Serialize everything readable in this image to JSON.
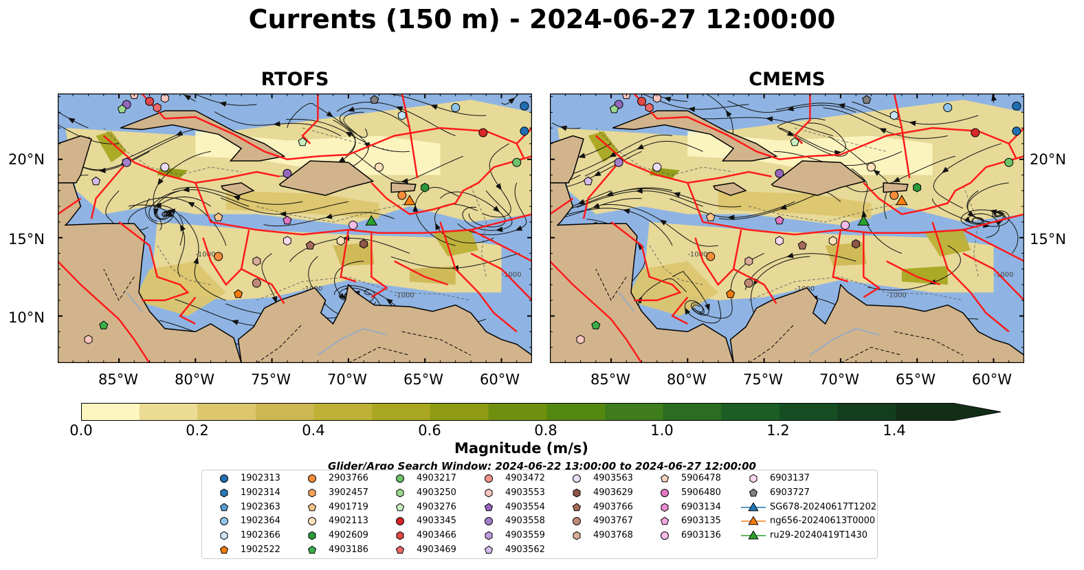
{
  "title": "Currents (150 m) - 2024-06-27 12:00:00",
  "panels": [
    {
      "name": "RTOFS"
    },
    {
      "name": "CMEMS"
    }
  ],
  "map": {
    "lon_range": [
      -89,
      -58
    ],
    "lat_range": [
      7,
      24.2
    ],
    "lat_ticks": [
      "20°N",
      "15°N",
      "10°N"
    ],
    "lon_ticks": [
      "85°W",
      "80°W",
      "75°W",
      "70°W",
      "65°W",
      "60°W"
    ],
    "contour_label": "-1000",
    "colors": {
      "ocean": "#8fb4e3",
      "land": "#d2b48c",
      "coast": "#000000",
      "eez": "#ff1a1a",
      "streamline": "#111111"
    }
  },
  "colorbar": {
    "label": "Magnitude (m/s)",
    "ticks": [
      "0.0",
      "0.2",
      "0.4",
      "0.6",
      "0.8",
      "1.0",
      "1.2",
      "1.4"
    ],
    "min": 0.0,
    "max": 1.5,
    "step": 0.1,
    "extend": "max",
    "colors": [
      "#fdf6c1",
      "#ecdb93",
      "#dcc66e",
      "#cdb853",
      "#bdb137",
      "#a9a621",
      "#8e9b13",
      "#6f900f",
      "#558811",
      "#3f7d1c",
      "#2a6d20",
      "#1b5d25",
      "#164d22",
      "#143d1d",
      "#122e17"
    ]
  },
  "search_window": "Glider/Argo Search Window: 2024-06-22 13:00:00 to 2024-06-27 12:00:00",
  "legend": {
    "columns": [
      [
        {
          "label": "1902313",
          "marker": "circle",
          "color": "#1f6fb2"
        },
        {
          "label": "1902314",
          "marker": "hexagon",
          "color": "#2a7ab8"
        },
        {
          "label": "1902363",
          "marker": "pentagon",
          "color": "#5a9fd4"
        },
        {
          "label": "1902364",
          "marker": "circle",
          "color": "#8fc3ea"
        },
        {
          "label": "1902366",
          "marker": "hexagon",
          "color": "#c6e4f7"
        },
        {
          "label": "1902522",
          "marker": "pentagon",
          "color": "#f47b0e"
        }
      ],
      [
        {
          "label": "2903766",
          "marker": "circle",
          "color": "#f58d3a"
        },
        {
          "label": "3902457",
          "marker": "hexagon",
          "color": "#f7a35c"
        },
        {
          "label": "4901719",
          "marker": "pentagon",
          "color": "#f9c48c"
        },
        {
          "label": "4902113",
          "marker": "circle",
          "color": "#fde0bc"
        },
        {
          "label": "4902609",
          "marker": "hexagon",
          "color": "#2a9a3a"
        },
        {
          "label": "4903186",
          "marker": "pentagon",
          "color": "#3ab04a"
        }
      ],
      [
        {
          "label": "4903217",
          "marker": "circle",
          "color": "#6cc36a"
        },
        {
          "label": "4903250",
          "marker": "hexagon",
          "color": "#9bd98e"
        },
        {
          "label": "4903276",
          "marker": "pentagon",
          "color": "#c9efbf"
        },
        {
          "label": "4903345",
          "marker": "circle",
          "color": "#d62728"
        },
        {
          "label": "4903466",
          "marker": "hexagon",
          "color": "#e04747"
        },
        {
          "label": "4903469",
          "marker": "pentagon",
          "color": "#ee6a6a"
        }
      ],
      [
        {
          "label": "4903472",
          "marker": "circle",
          "color": "#f1938a"
        },
        {
          "label": "4903553",
          "marker": "hexagon",
          "color": "#f9c6c0"
        },
        {
          "label": "4903554",
          "marker": "pentagon",
          "color": "#9467bd"
        },
        {
          "label": "4903558",
          "marker": "circle",
          "color": "#a37fcc"
        },
        {
          "label": "4903559",
          "marker": "hexagon",
          "color": "#bb9cdc"
        },
        {
          "label": "4903562",
          "marker": "pentagon",
          "color": "#d3bcec"
        }
      ],
      [
        {
          "label": "4903563",
          "marker": "circle",
          "color": "#e9dcf5"
        },
        {
          "label": "4903629",
          "marker": "hexagon",
          "color": "#8c564b"
        },
        {
          "label": "4903766",
          "marker": "pentagon",
          "color": "#a56b5c"
        },
        {
          "label": "4903767",
          "marker": "circle",
          "color": "#c08a78"
        },
        {
          "label": "4903768",
          "marker": "hexagon",
          "color": "#d9ac98"
        }
      ],
      [
        {
          "label": "5906478",
          "marker": "pentagon",
          "color": "#f6d2bf"
        },
        {
          "label": "5906480",
          "marker": "circle",
          "color": "#e377c2"
        },
        {
          "label": "6903134",
          "marker": "hexagon",
          "color": "#ea8ccf"
        },
        {
          "label": "6903135",
          "marker": "pentagon",
          "color": "#f2a8de"
        },
        {
          "label": "6903136",
          "marker": "circle",
          "color": "#f7bde6"
        }
      ],
      [
        {
          "label": "6903137",
          "marker": "hexagon",
          "color": "#fbd7f0"
        },
        {
          "label": "6903727",
          "marker": "pentagon",
          "color": "#7f7f7f"
        },
        {
          "label": "SG678-20240617T1202",
          "marker": "triangle",
          "color": "#1f77b4"
        },
        {
          "label": "ng656-20240613T0000",
          "marker": "triangle",
          "color": "#ff7f0e"
        },
        {
          "label": "ru29-20240419T1430",
          "marker": "triangle",
          "color": "#2ca02c"
        }
      ]
    ]
  },
  "floats": [
    {
      "lon": -84.5,
      "lat": 23.5,
      "marker": "circle",
      "color": "#9467bd"
    },
    {
      "lon": -84.0,
      "lat": 24.1,
      "marker": "pentagon",
      "color": "#f9c6c0"
    },
    {
      "lon": -84.8,
      "lat": 23.2,
      "marker": "pentagon",
      "color": "#9bd98e"
    },
    {
      "lon": -83.0,
      "lat": 23.7,
      "marker": "circle",
      "color": "#e04747"
    },
    {
      "lon": -82.5,
      "lat": 23.3,
      "marker": "hexagon",
      "color": "#ee6a6a"
    },
    {
      "lon": -82.0,
      "lat": 23.9,
      "marker": "hexagon",
      "color": "#f9c6c0"
    },
    {
      "lon": -68.3,
      "lat": 23.8,
      "marker": "pentagon",
      "color": "#7f7f7f"
    },
    {
      "lon": -66.5,
      "lat": 22.8,
      "marker": "hexagon",
      "color": "#c6e4f7"
    },
    {
      "lon": -63.0,
      "lat": 23.3,
      "marker": "circle",
      "color": "#8fc3ea"
    },
    {
      "lon": -58.5,
      "lat": 23.4,
      "marker": "circle",
      "color": "#1f6fb2"
    },
    {
      "lon": -58.5,
      "lat": 21.8,
      "marker": "circle",
      "color": "#1f6fb2"
    },
    {
      "lon": -61.2,
      "lat": 21.7,
      "marker": "circle",
      "color": "#d62728"
    },
    {
      "lon": -59.0,
      "lat": 19.8,
      "marker": "circle",
      "color": "#6cc36a"
    },
    {
      "lon": -84.5,
      "lat": 19.8,
      "marker": "circle",
      "color": "#a37fcc"
    },
    {
      "lon": -82.0,
      "lat": 19.5,
      "marker": "circle",
      "color": "#e9dcf5"
    },
    {
      "lon": -86.5,
      "lat": 18.6,
      "marker": "pentagon",
      "color": "#d3bcec"
    },
    {
      "lon": -73.0,
      "lat": 21.1,
      "marker": "pentagon",
      "color": "#c9efbf"
    },
    {
      "lon": -74.0,
      "lat": 19.1,
      "marker": "circle",
      "color": "#9467bd"
    },
    {
      "lon": -68.0,
      "lat": 19.5,
      "marker": "circle",
      "color": "#fde0bc"
    },
    {
      "lon": -65.0,
      "lat": 18.2,
      "marker": "hexagon",
      "color": "#2a9a3a"
    },
    {
      "lon": -66.5,
      "lat": 17.7,
      "marker": "circle",
      "color": "#f58d3a"
    },
    {
      "lon": -78.5,
      "lat": 16.3,
      "marker": "pentagon",
      "color": "#f9c48c"
    },
    {
      "lon": -74.0,
      "lat": 16.1,
      "marker": "pentagon",
      "color": "#e377c2"
    },
    {
      "lon": -74.0,
      "lat": 14.8,
      "marker": "hexagon",
      "color": "#fbd7f0"
    },
    {
      "lon": -72.5,
      "lat": 14.5,
      "marker": "pentagon",
      "color": "#a56b5c"
    },
    {
      "lon": -78.5,
      "lat": 13.8,
      "marker": "circle",
      "color": "#f58d3a"
    },
    {
      "lon": -76.0,
      "lat": 13.5,
      "marker": "hexagon",
      "color": "#d9ac98"
    },
    {
      "lon": -76.0,
      "lat": 12.1,
      "marker": "circle",
      "color": "#c08a78"
    },
    {
      "lon": -77.2,
      "lat": 11.4,
      "marker": "pentagon",
      "color": "#f47b0e"
    },
    {
      "lon": -70.5,
      "lat": 14.8,
      "marker": "hexagon",
      "color": "#fde0bc"
    },
    {
      "lon": -69.7,
      "lat": 15.8,
      "marker": "circle",
      "color": "#f7bde6"
    },
    {
      "lon": -69.0,
      "lat": 14.6,
      "marker": "hexagon",
      "color": "#8c564b"
    },
    {
      "lon": -86.0,
      "lat": 9.4,
      "marker": "pentagon",
      "color": "#3ab04a"
    },
    {
      "lon": -87.0,
      "lat": 8.5,
      "marker": "hexagon",
      "color": "#f9c6c0"
    }
  ],
  "gliders": [
    {
      "lon": -68.5,
      "lat": 16.0,
      "color": "#2ca02c"
    },
    {
      "lon": -66.0,
      "lat": 17.3,
      "color": "#ff7f0e"
    }
  ]
}
